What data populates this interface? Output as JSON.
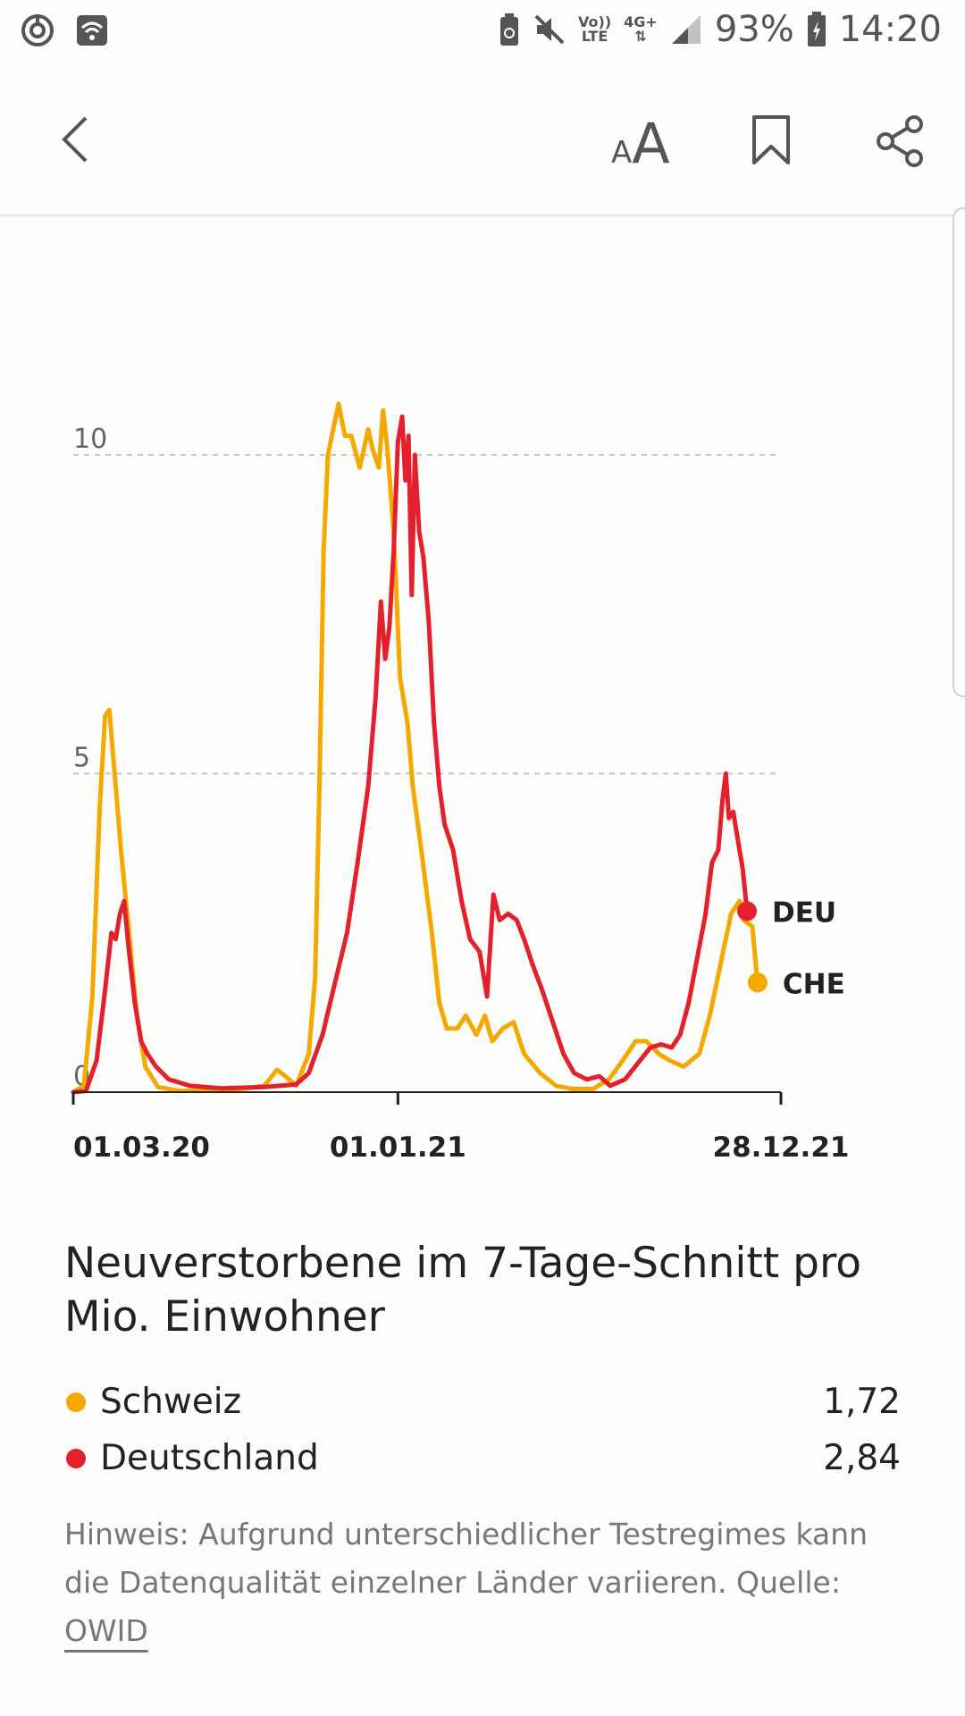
{
  "status_bar": {
    "battery_percent": "93%",
    "time": "14:20",
    "volte_top": "Vo))",
    "volte_bottom": "LTE",
    "network": "4G+",
    "icons": [
      "sync-icon",
      "wifi-icon",
      "recycle-icon",
      "mute-icon",
      "signal-icon",
      "battery-icon"
    ]
  },
  "app_bar": {
    "font_size_small": "A",
    "font_size_large": "A",
    "icons": [
      "back-arrow-icon",
      "bookmark-icon",
      "share-icon"
    ]
  },
  "colors": {
    "schweiz": "#f5a800",
    "deutschland": "#e3202c",
    "grid": "#c8c8c8",
    "axis": "#222222"
  },
  "chart_data": {
    "type": "line",
    "title": "Neuverstorbene im 7-Tage-Schnitt pro Mio. Einwohner",
    "xlabel": "",
    "ylabel": "",
    "ylim": [
      0,
      10.9
    ],
    "yticks": [
      {
        "value": 0,
        "label": "0"
      },
      {
        "value": 5,
        "label": "5"
      },
      {
        "value": 10,
        "label": "10"
      }
    ],
    "xticks": [
      {
        "index": 0,
        "label": "01.03.20"
      },
      {
        "index": 306,
        "label": "01.01.21"
      },
      {
        "index": 667,
        "label": "28.12.21"
      }
    ],
    "x_range": [
      0,
      667
    ],
    "end_labels": [
      "DEU",
      "CHE"
    ],
    "series": [
      {
        "name": "Schweiz",
        "code": "CHE",
        "points": [
          [
            0,
            0
          ],
          [
            10,
            0.1
          ],
          [
            18,
            1.5
          ],
          [
            25,
            4.5
          ],
          [
            30,
            5.9
          ],
          [
            34,
            6.0
          ],
          [
            39,
            5.0
          ],
          [
            45,
            3.8
          ],
          [
            52,
            2.6
          ],
          [
            60,
            1.2
          ],
          [
            68,
            0.4
          ],
          [
            80,
            0.08
          ],
          [
            100,
            0.02
          ],
          [
            150,
            0.03
          ],
          [
            180,
            0.1
          ],
          [
            192,
            0.35
          ],
          [
            200,
            0.25
          ],
          [
            210,
            0.1
          ],
          [
            222,
            0.6
          ],
          [
            228,
            1.8
          ],
          [
            232,
            4.8
          ],
          [
            236,
            8.5
          ],
          [
            240,
            10.0
          ],
          [
            245,
            10.4
          ],
          [
            250,
            10.8
          ],
          [
            256,
            10.3
          ],
          [
            262,
            10.3
          ],
          [
            270,
            9.8
          ],
          [
            278,
            10.4
          ],
          [
            282,
            10.1
          ],
          [
            288,
            9.8
          ],
          [
            292,
            10.7
          ],
          [
            296,
            10.1
          ],
          [
            302,
            8.8
          ],
          [
            308,
            6.5
          ],
          [
            315,
            5.8
          ],
          [
            320,
            4.8
          ],
          [
            328,
            3.8
          ],
          [
            338,
            2.5
          ],
          [
            345,
            1.4
          ],
          [
            352,
            1.0
          ],
          [
            362,
            1.0
          ],
          [
            370,
            1.2
          ],
          [
            380,
            0.9
          ],
          [
            388,
            1.2
          ],
          [
            395,
            0.8
          ],
          [
            405,
            1.0
          ],
          [
            415,
            1.1
          ],
          [
            425,
            0.6
          ],
          [
            440,
            0.3
          ],
          [
            455,
            0.1
          ],
          [
            470,
            0.05
          ],
          [
            490,
            0.05
          ],
          [
            505,
            0.2
          ],
          [
            518,
            0.5
          ],
          [
            530,
            0.8
          ],
          [
            540,
            0.8
          ],
          [
            552,
            0.6
          ],
          [
            562,
            0.5
          ],
          [
            575,
            0.4
          ],
          [
            590,
            0.6
          ],
          [
            600,
            1.2
          ],
          [
            610,
            2.0
          ],
          [
            620,
            2.8
          ],
          [
            628,
            3.0
          ],
          [
            632,
            2.7
          ],
          [
            640,
            2.6
          ],
          [
            645,
            1.72
          ]
        ]
      },
      {
        "name": "Deutschland",
        "code": "DEU",
        "points": [
          [
            0,
            0
          ],
          [
            12,
            0.02
          ],
          [
            22,
            0.5
          ],
          [
            30,
            1.6
          ],
          [
            36,
            2.5
          ],
          [
            40,
            2.4
          ],
          [
            44,
            2.8
          ],
          [
            48,
            3.0
          ],
          [
            52,
            2.3
          ],
          [
            58,
            1.4
          ],
          [
            64,
            0.8
          ],
          [
            70,
            0.6
          ],
          [
            78,
            0.4
          ],
          [
            90,
            0.2
          ],
          [
            110,
            0.1
          ],
          [
            140,
            0.06
          ],
          [
            180,
            0.08
          ],
          [
            210,
            0.12
          ],
          [
            222,
            0.3
          ],
          [
            235,
            0.9
          ],
          [
            245,
            1.6
          ],
          [
            258,
            2.5
          ],
          [
            268,
            3.6
          ],
          [
            278,
            4.8
          ],
          [
            285,
            6.2
          ],
          [
            290,
            7.7
          ],
          [
            294,
            6.8
          ],
          [
            298,
            7.3
          ],
          [
            302,
            8.5
          ],
          [
            306,
            10.2
          ],
          [
            310,
            10.6
          ],
          [
            313,
            9.6
          ],
          [
            316,
            10.3
          ],
          [
            319,
            7.8
          ],
          [
            322,
            10.0
          ],
          [
            326,
            8.8
          ],
          [
            330,
            8.4
          ],
          [
            335,
            7.4
          ],
          [
            340,
            5.8
          ],
          [
            345,
            4.8
          ],
          [
            350,
            4.2
          ],
          [
            358,
            3.8
          ],
          [
            366,
            3.0
          ],
          [
            374,
            2.4
          ],
          [
            383,
            2.2
          ],
          [
            390,
            1.5
          ],
          [
            396,
            3.1
          ],
          [
            402,
            2.7
          ],
          [
            410,
            2.8
          ],
          [
            418,
            2.7
          ],
          [
            425,
            2.4
          ],
          [
            433,
            2.0
          ],
          [
            442,
            1.6
          ],
          [
            452,
            1.1
          ],
          [
            462,
            0.6
          ],
          [
            472,
            0.3
          ],
          [
            484,
            0.2
          ],
          [
            496,
            0.25
          ],
          [
            506,
            0.1
          ],
          [
            520,
            0.2
          ],
          [
            532,
            0.45
          ],
          [
            544,
            0.7
          ],
          [
            554,
            0.75
          ],
          [
            564,
            0.7
          ],
          [
            572,
            0.9
          ],
          [
            580,
            1.4
          ],
          [
            588,
            2.1
          ],
          [
            596,
            2.8
          ],
          [
            602,
            3.6
          ],
          [
            608,
            3.8
          ],
          [
            612,
            4.6
          ],
          [
            615,
            5.0
          ],
          [
            618,
            4.3
          ],
          [
            622,
            4.4
          ],
          [
            626,
            4.0
          ],
          [
            631,
            3.5
          ],
          [
            635,
            2.84
          ]
        ]
      }
    ]
  },
  "legend": [
    {
      "name": "Schweiz",
      "value": "1,72"
    },
    {
      "name": "Deutschland",
      "value": "2,84"
    }
  ],
  "note": {
    "text": "Hinweis: Aufgrund unterschiedlicher Testregimes kann die Datenqualität einzelner Länder variieren. Quelle: ",
    "link": "OWID"
  }
}
